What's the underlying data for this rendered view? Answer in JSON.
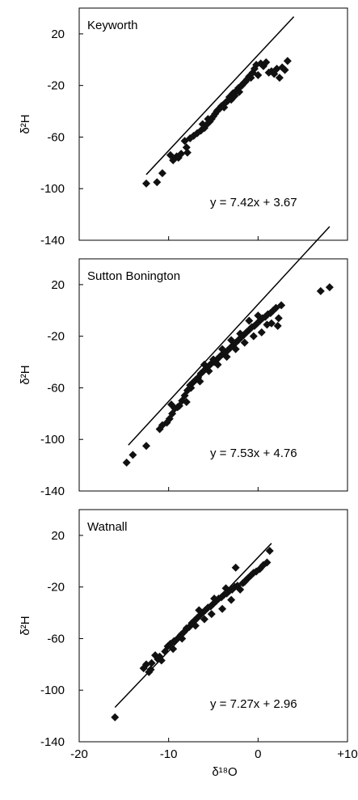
{
  "chart_data": [
    {
      "type": "scatter",
      "title": "Keyworth",
      "ylabel": "δ²H",
      "xlabel": "",
      "xlim": [
        -20,
        10
      ],
      "ylim": [
        -140,
        40
      ],
      "yticks": [
        "20",
        "-20",
        "-60",
        "-100",
        "-140"
      ],
      "equation": "y = 7.42x + 3.67",
      "fit": {
        "slope": 7.42,
        "intercept": 3.67,
        "x_range": [
          -12.5,
          4
        ]
      },
      "grid": false,
      "points": [
        [
          -12.5,
          -96
        ],
        [
          -11.3,
          -95
        ],
        [
          -10.7,
          -88
        ],
        [
          -9.8,
          -74
        ],
        [
          -9.5,
          -78
        ],
        [
          -9.1,
          -75
        ],
        [
          -8.9,
          -76
        ],
        [
          -8.6,
          -73
        ],
        [
          -8.2,
          -63
        ],
        [
          -8.0,
          -68
        ],
        [
          -7.9,
          -72
        ],
        [
          -7.6,
          -61
        ],
        [
          -7.2,
          -59
        ],
        [
          -6.8,
          -57
        ],
        [
          -6.4,
          -55
        ],
        [
          -6.0,
          -53
        ],
        [
          -5.7,
          -50
        ],
        [
          -5.4,
          -48
        ],
        [
          -5.2,
          -46
        ],
        [
          -5.0,
          -44
        ],
        [
          -4.8,
          -42
        ],
        [
          -4.6,
          -40
        ],
        [
          -4.3,
          -38
        ],
        [
          -4.1,
          -36
        ],
        [
          -3.9,
          -35
        ],
        [
          -3.6,
          -33
        ],
        [
          -3.4,
          -32
        ],
        [
          -3.2,
          -29
        ],
        [
          -3.0,
          -31
        ],
        [
          -2.8,
          -26
        ],
        [
          -2.6,
          -28
        ],
        [
          -2.4,
          -24
        ],
        [
          -2.2,
          -22
        ],
        [
          -2.0,
          -21
        ],
        [
          -1.8,
          -20
        ],
        [
          -1.6,
          -18
        ],
        [
          -1.4,
          -17
        ],
        [
          -1.2,
          -15
        ],
        [
          -1.0,
          -13
        ],
        [
          -0.8,
          -14
        ],
        [
          -0.6,
          -10
        ],
        [
          -0.4,
          -7
        ],
        [
          -0.2,
          -4
        ],
        [
          0.0,
          -12
        ],
        [
          0.3,
          -3
        ],
        [
          0.6,
          -5
        ],
        [
          0.9,
          -2
        ],
        [
          1.2,
          -10
        ],
        [
          1.5,
          -9
        ],
        [
          1.8,
          -11
        ],
        [
          2.1,
          -7
        ],
        [
          2.4,
          -14
        ],
        [
          2.7,
          -6
        ],
        [
          3.0,
          -8
        ],
        [
          3.3,
          -1
        ],
        [
          -6.2,
          -50
        ],
        [
          -5.6,
          -46
        ],
        [
          -4.5,
          -39
        ],
        [
          -3.8,
          -37
        ],
        [
          -2.9,
          -30
        ],
        [
          -2.1,
          -25
        ]
      ]
    },
    {
      "type": "scatter",
      "title": "Sutton Bonington",
      "ylabel": "δ²H",
      "xlabel": "",
      "xlim": [
        -20,
        10
      ],
      "ylim": [
        -140,
        40
      ],
      "yticks": [
        "20",
        "-20",
        "-60",
        "-100",
        "-140"
      ],
      "equation": "y = 7.53x + 4.76",
      "fit": {
        "slope": 7.53,
        "intercept": 4.76,
        "x_range": [
          -14.5,
          8
        ]
      },
      "grid": false,
      "points": [
        [
          -14.7,
          -118
        ],
        [
          -14.0,
          -112
        ],
        [
          -12.5,
          -105
        ],
        [
          -11.0,
          -92
        ],
        [
          -10.7,
          -89
        ],
        [
          -10.2,
          -87
        ],
        [
          -9.9,
          -84
        ],
        [
          -9.6,
          -80
        ],
        [
          -9.3,
          -76
        ],
        [
          -9.7,
          -73
        ],
        [
          -8.8,
          -74
        ],
        [
          -8.5,
          -70
        ],
        [
          -8.2,
          -66
        ],
        [
          -7.9,
          -62
        ],
        [
          -7.6,
          -58
        ],
        [
          -7.3,
          -56
        ],
        [
          -7.0,
          -54
        ],
        [
          -6.7,
          -52
        ],
        [
          -6.4,
          -49
        ],
        [
          -6.1,
          -47
        ],
        [
          -5.8,
          -45
        ],
        [
          -5.5,
          -43
        ],
        [
          -5.2,
          -41
        ],
        [
          -4.9,
          -40
        ],
        [
          -4.6,
          -38
        ],
        [
          -4.3,
          -36
        ],
        [
          -4.0,
          -34
        ],
        [
          -3.7,
          -33
        ],
        [
          -3.4,
          -31
        ],
        [
          -3.1,
          -29
        ],
        [
          -2.8,
          -27
        ],
        [
          -2.5,
          -25
        ],
        [
          -2.2,
          -23
        ],
        [
          -1.9,
          -21
        ],
        [
          -1.6,
          -19
        ],
        [
          -1.3,
          -17
        ],
        [
          -1.0,
          -15
        ],
        [
          -0.7,
          -13
        ],
        [
          -0.4,
          -12
        ],
        [
          -0.1,
          -10
        ],
        [
          0.2,
          -8
        ],
        [
          0.5,
          -6
        ],
        [
          0.8,
          -5
        ],
        [
          1.1,
          -3
        ],
        [
          1.4,
          -2
        ],
        [
          1.7,
          0
        ],
        [
          2.0,
          2
        ],
        [
          2.3,
          -6
        ],
        [
          2.6,
          4
        ],
        [
          1.0,
          -11
        ],
        [
          0.4,
          -17
        ],
        [
          -0.5,
          -20
        ],
        [
          -1.5,
          -25
        ],
        [
          -2.5,
          -30
        ],
        [
          -3.5,
          -36
        ],
        [
          -4.5,
          -42
        ],
        [
          -5.5,
          -47
        ],
        [
          -6.5,
          -55
        ],
        [
          -7.5,
          -60
        ],
        [
          -8.0,
          -71
        ],
        [
          -9.0,
          -75
        ],
        [
          -6.0,
          -42
        ],
        [
          -5.0,
          -38
        ],
        [
          -4.0,
          -30
        ],
        [
          -3.0,
          -23
        ],
        [
          -2.0,
          -18
        ],
        [
          -1.0,
          -8
        ],
        [
          0.0,
          -4
        ],
        [
          1.5,
          -10
        ],
        [
          2.2,
          -12
        ],
        [
          7.0,
          15
        ],
        [
          8.0,
          18
        ]
      ]
    },
    {
      "type": "scatter",
      "title": "Watnall",
      "ylabel": "δ²H",
      "xlabel": "δ¹⁸O",
      "xlim": [
        -20,
        10
      ],
      "ylim": [
        -140,
        40
      ],
      "xticks": [
        "-20",
        "-10",
        "0",
        "+10"
      ],
      "yticks": [
        "20",
        "-20",
        "-60",
        "-100",
        "-140"
      ],
      "equation": "y = 7.27x + 2.96",
      "fit": {
        "slope": 7.27,
        "intercept": 2.96,
        "x_range": [
          -16,
          1.5
        ]
      },
      "grid": false,
      "points": [
        [
          -16.0,
          -121
        ],
        [
          -12.8,
          -83
        ],
        [
          -12.5,
          -80
        ],
        [
          -12.2,
          -86
        ],
        [
          -11.9,
          -79
        ],
        [
          -11.5,
          -73
        ],
        [
          -11.2,
          -76
        ],
        [
          -10.8,
          -77
        ],
        [
          -10.4,
          -70
        ],
        [
          -10.1,
          -66
        ],
        [
          -9.8,
          -64
        ],
        [
          -9.4,
          -62
        ],
        [
          -9.0,
          -60
        ],
        [
          -8.6,
          -57
        ],
        [
          -8.3,
          -55
        ],
        [
          -8.0,
          -52
        ],
        [
          -7.7,
          -51
        ],
        [
          -7.4,
          -48
        ],
        [
          -7.1,
          -46
        ],
        [
          -6.8,
          -44
        ],
        [
          -6.5,
          -42
        ],
        [
          -6.2,
          -40
        ],
        [
          -5.9,
          -38
        ],
        [
          -5.6,
          -36
        ],
        [
          -5.3,
          -35
        ],
        [
          -5.0,
          -33
        ],
        [
          -4.7,
          -31
        ],
        [
          -4.4,
          -29
        ],
        [
          -4.1,
          -28
        ],
        [
          -3.8,
          -26
        ],
        [
          -3.5,
          -25
        ],
        [
          -3.2,
          -23
        ],
        [
          -2.9,
          -22
        ],
        [
          -2.6,
          -20
        ],
        [
          -2.3,
          -19
        ],
        [
          -2.0,
          -22
        ],
        [
          -1.7,
          -17
        ],
        [
          -1.4,
          -15
        ],
        [
          -1.1,
          -13
        ],
        [
          -0.8,
          -11
        ],
        [
          -0.5,
          -9
        ],
        [
          -0.2,
          -8
        ],
        [
          0.2,
          -6
        ],
        [
          0.6,
          -3
        ],
        [
          1.0,
          -1
        ],
        [
          1.3,
          8
        ],
        [
          -2.5,
          -5
        ],
        [
          -1.5,
          -16
        ],
        [
          -3.0,
          -30
        ],
        [
          -4.0,
          -37
        ],
        [
          -5.2,
          -41
        ],
        [
          -6.0,
          -45
        ],
        [
          -7.0,
          -50
        ],
        [
          -8.5,
          -60
        ],
        [
          -9.5,
          -68
        ],
        [
          -11.0,
          -74
        ],
        [
          -12.0,
          -84
        ],
        [
          -6.6,
          -38
        ],
        [
          -4.9,
          -29
        ],
        [
          -3.6,
          -21
        ]
      ]
    }
  ]
}
